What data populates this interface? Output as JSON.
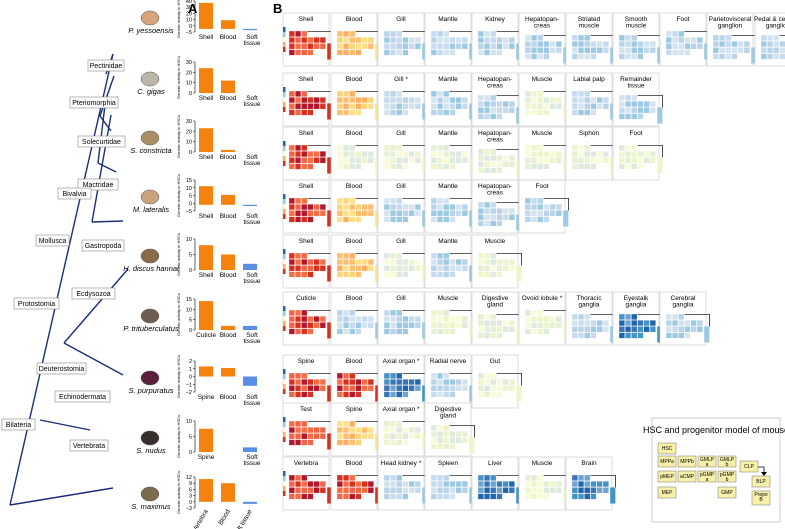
{
  "panel_labels": [
    "A",
    "B"
  ],
  "tree": {
    "nodes": [
      "Pectinidae",
      "Pteriomorphia",
      "Solecurtidae",
      "Mactridae",
      "Bivalvia",
      "Mollusca",
      "Gastropoda",
      "Ecdysozoa",
      "Protostomia",
      "Deuterostomia",
      "Echinodermata",
      "Bilateria",
      "Vertebrata"
    ],
    "species": [
      "P. yessoensis",
      "C. gigas",
      "S. constricta",
      "M. lateralis",
      "H. discus hannai",
      "P. trituberculatus",
      "S. purpuratus",
      "S. nudus",
      "S. maximus"
    ]
  },
  "ylabel": "Genetic activity in HSCs",
  "chart_data": [
    {
      "type": "bar",
      "categories": [
        "Shell",
        "Blood",
        "Soft tissue"
      ],
      "values": [
        42,
        14,
        -2
      ],
      "ylim": [
        -5,
        45
      ],
      "yticks": [
        "40",
        "30",
        "20",
        "10",
        "0",
        "−5"
      ]
    },
    {
      "type": "bar",
      "categories": [
        "Shell",
        "Blood",
        "Soft tissue"
      ],
      "values": [
        24,
        12,
        0
      ],
      "ylim": [
        0,
        30
      ],
      "yticks": [
        "30",
        "20",
        "10",
        "0"
      ]
    },
    {
      "type": "bar",
      "categories": [
        "Shell",
        "Blood",
        "Soft tissue"
      ],
      "values": [
        23,
        2,
        0
      ],
      "ylim": [
        0,
        30
      ],
      "yticks": [
        "30",
        "20",
        "10",
        "0"
      ]
    },
    {
      "type": "bar",
      "categories": [
        "Shell",
        "Blood",
        "Soft tissue"
      ],
      "values": [
        15,
        8,
        -1
      ],
      "ylim": [
        -5,
        20
      ],
      "yticks": [
        "15",
        "10",
        "5",
        "0",
        "−5"
      ]
    },
    {
      "type": "bar",
      "categories": [
        "Shell",
        "Blood",
        "Soft tissue"
      ],
      "values": [
        8,
        5,
        2
      ],
      "ylim": [
        0,
        10
      ],
      "yticks": [
        "10",
        "5",
        "0"
      ]
    },
    {
      "type": "bar",
      "categories": [
        "Cuticle",
        "Blood",
        "Soft tissue"
      ],
      "values": [
        14,
        2,
        2
      ],
      "ylim": [
        0,
        15
      ],
      "yticks": [
        "15",
        "10",
        "5",
        "0"
      ]
    },
    {
      "type": "bar",
      "categories": [
        "Spine",
        "Blood",
        "Soft tissue"
      ],
      "values": [
        1.3,
        1.1,
        -1.2
      ],
      "ylim": [
        -2,
        2
      ],
      "yticks": [
        "2",
        "1",
        "0",
        "−1",
        "−2"
      ]
    },
    {
      "type": "bar",
      "categories": [
        "Spine",
        "",
        "Soft tissue"
      ],
      "values": [
        7.5,
        0,
        1.5
      ],
      "ylim": [
        0,
        10
      ],
      "yticks": [
        "10",
        "5",
        "0"
      ]
    },
    {
      "type": "bar",
      "categories": [
        "Vertebra",
        "Blood",
        "Soft tissue"
      ],
      "values": [
        11,
        9,
        -1
      ],
      "ylim": [
        -3,
        12
      ],
      "yticks": [
        "12",
        "9",
        "6",
        "3",
        "0",
        "−3"
      ]
    }
  ],
  "tissues": [
    [
      "Shell",
      "Blood",
      "Gill",
      "Mantle",
      "Kidney",
      "Hepatopan-|creas",
      "Striated|muscle",
      "Smooth|muscle",
      "Foot",
      "Parietovisceral|ganglion",
      "Pedal & cerebral|ganglion"
    ],
    [
      "Shell",
      "Blood",
      "Gill *",
      "Mantle",
      "Hepatopan-|creas",
      "Muscle",
      "Labial palp",
      "Remainder|tissue"
    ],
    [
      "Shell",
      "Blood",
      "Gill",
      "Mantle",
      "Hepatopan-|creas",
      "Muscle",
      "Siphon",
      "Foot"
    ],
    [
      "Shell",
      "Blood",
      "Gill",
      "Mantle",
      "Hepatopan-|creas",
      "Foot"
    ],
    [
      "Shell",
      "Blood",
      "Gill",
      "Mantle",
      "Muscle"
    ],
    [
      "Cuticle",
      "Blood",
      "Gill",
      "Muscle",
      "Digestive|gland",
      "Ovoid lobule *",
      "Thoracic|ganglia",
      "Eyestalk|ganglia",
      "Cerebral|ganglia"
    ],
    [
      "Spine",
      "Blood",
      "Axial organ *",
      "Radial nerve",
      "Gut"
    ],
    [
      "Test",
      "Spine",
      "Axial organ *",
      "Digestive|gland"
    ],
    [
      "Vertebra",
      "Blood",
      "Head kidney *",
      "Spleen",
      "Liver",
      "Muscle",
      "Brain"
    ]
  ],
  "tones": [
    [
      "hot",
      "warm",
      "cool",
      "cool",
      "cool",
      "cool",
      "cool",
      "cool",
      "cool",
      "cool",
      "cool"
    ],
    [
      "hot",
      "warm",
      "cool",
      "cool",
      "cool",
      "pale",
      "cool",
      "cool"
    ],
    [
      "hot",
      "pale",
      "pale",
      "pale",
      "pale",
      "pale",
      "pale",
      "pale"
    ],
    [
      "hot",
      "warm",
      "cool",
      "cool",
      "cool",
      "cool"
    ],
    [
      "hot",
      "warm",
      "pale",
      "cool",
      "pale"
    ],
    [
      "hot",
      "cool",
      "cool",
      "pale",
      "pale",
      "pale",
      "cool",
      "deep",
      "cool"
    ],
    [
      "hot",
      "hot",
      "deep",
      "cool",
      "pale"
    ],
    [
      "hot",
      "warm",
      "pale",
      "pale"
    ],
    [
      "hot",
      "hot",
      "cool",
      "cool",
      "deep",
      "pale",
      "deep"
    ]
  ],
  "legend": {
    "title": "HSC and progenitor model of mouse",
    "cells": [
      "HSC",
      "MPPa",
      "MPPb",
      "GMLP|a",
      "GMLP|b",
      "CLP",
      "pMEP",
      "aCMP",
      "pGMP|a",
      "pGMP|b",
      "MEP",
      "GMP",
      "BLP",
      "Prepo|B"
    ]
  },
  "colors": {
    "bar": "#f5820d",
    "bar_neg": "#5b8ee6",
    "tree": "#1b2f7a",
    "hot": "#d7301f",
    "warm": "#fdae61",
    "pale": "#f1f5d8",
    "cool": "#9ec3dc",
    "deep": "#3c6fb0",
    "legend_cell": "#f7f0a8"
  }
}
